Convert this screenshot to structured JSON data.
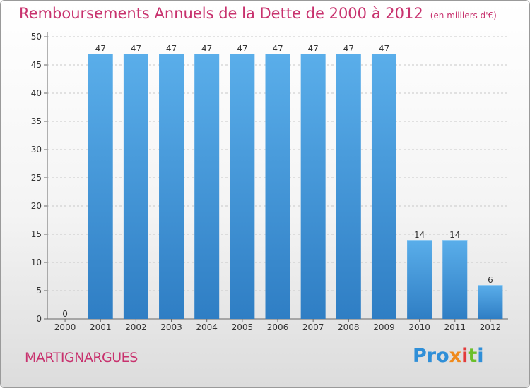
{
  "chart_data": {
    "type": "bar",
    "title": "Remboursements Annuels de la Dette de 2000 à 2012",
    "unit": "(en milliers d'€)",
    "categories": [
      "2000",
      "2001",
      "2002",
      "2003",
      "2004",
      "2005",
      "2006",
      "2007",
      "2008",
      "2009",
      "2010",
      "2011",
      "2012"
    ],
    "values": [
      0,
      47,
      47,
      47,
      47,
      47,
      47,
      47,
      47,
      47,
      14,
      14,
      6
    ],
    "ylim": [
      0,
      50
    ],
    "yticks": [
      0,
      5,
      10,
      15,
      20,
      25,
      30,
      35,
      40,
      45,
      50
    ],
    "grid": true,
    "bar_color": "#4f9fe0"
  },
  "commune": "MARTIGNARGUES",
  "logo": {
    "p": "Pro",
    "x": "x",
    "i": "i",
    "t": "t",
    "i2": "i"
  }
}
